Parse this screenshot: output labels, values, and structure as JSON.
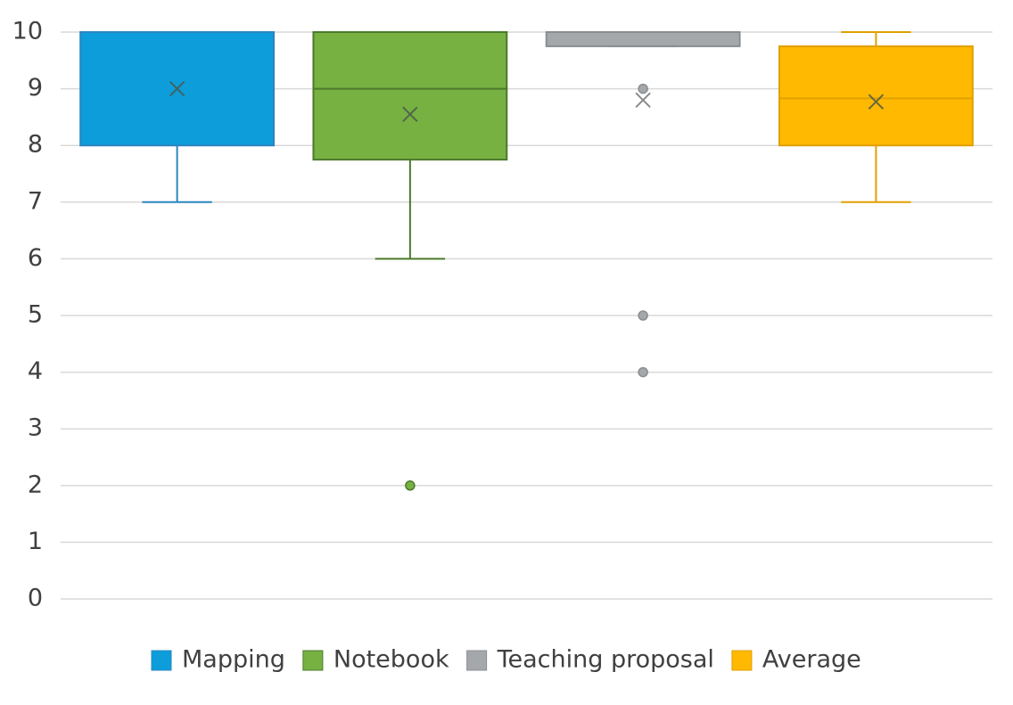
{
  "chart_data": {
    "type": "box",
    "ylim": [
      0,
      10
    ],
    "yticks": [
      0,
      1,
      2,
      3,
      4,
      5,
      6,
      7,
      8,
      9,
      10
    ],
    "grid": true,
    "legend": "bottom",
    "series": [
      {
        "name": "Mapping",
        "color": "#0d9ddb",
        "edge": "#2b86c0",
        "min": 7,
        "q1": 8,
        "median": 10,
        "q3": 10,
        "max": 10,
        "mean": 9,
        "outliers": []
      },
      {
        "name": "Notebook",
        "color": "#77b142",
        "edge": "#4b7a2b",
        "min": 6,
        "q1": 7.75,
        "median": 9,
        "q3": 10,
        "max": 10,
        "mean": 8.55,
        "outliers": [
          2
        ]
      },
      {
        "name": "Teaching proposal",
        "color": "#a5a8ab",
        "edge": "#8a8d90",
        "min": 9.75,
        "q1": 9.75,
        "median": 10,
        "q3": 10,
        "max": 10,
        "mean": 8.8,
        "outliers": [
          9,
          5,
          4
        ]
      },
      {
        "name": "Average",
        "color": "#ffb900",
        "edge": "#e0a000",
        "min": 7,
        "q1": 8,
        "median": 8.83,
        "q3": 9.75,
        "max": 10,
        "mean": 8.77,
        "outliers": []
      }
    ]
  }
}
